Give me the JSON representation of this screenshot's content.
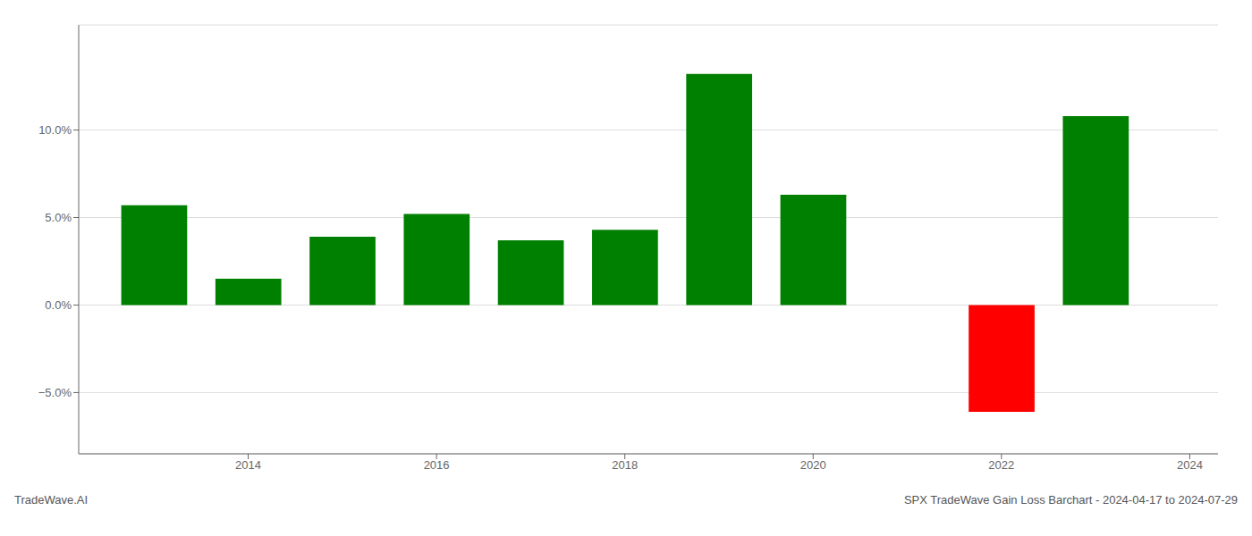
{
  "chart_data": {
    "type": "bar",
    "x": [
      2013,
      2014,
      2015,
      2016,
      2017,
      2018,
      2019,
      2020,
      2022,
      2023
    ],
    "values": [
      5.7,
      1.5,
      3.9,
      5.2,
      3.7,
      4.3,
      13.2,
      6.3,
      -6.1,
      10.8
    ],
    "colors": [
      "#008000",
      "#008000",
      "#008000",
      "#008000",
      "#008000",
      "#008000",
      "#008000",
      "#008000",
      "#ff0000",
      "#008000"
    ],
    "xlim": [
      2012.2,
      2024.3
    ],
    "xticks": [
      2014,
      2016,
      2018,
      2020,
      2022,
      2024
    ],
    "ylim": [
      -8.5,
      16.0
    ],
    "yticks": [
      {
        "value": -5.0,
        "label": "−5.0%"
      },
      {
        "value": 0.0,
        "label": "0.0%"
      },
      {
        "value": 5.0,
        "label": "5.0%"
      },
      {
        "value": 10.0,
        "label": "10.0%"
      }
    ],
    "grid": true,
    "annotations": [
      "TradeWave.AI",
      "SPX TradeWave Gain Loss Barchart - 2024-04-17 to 2024-07-29"
    ]
  }
}
